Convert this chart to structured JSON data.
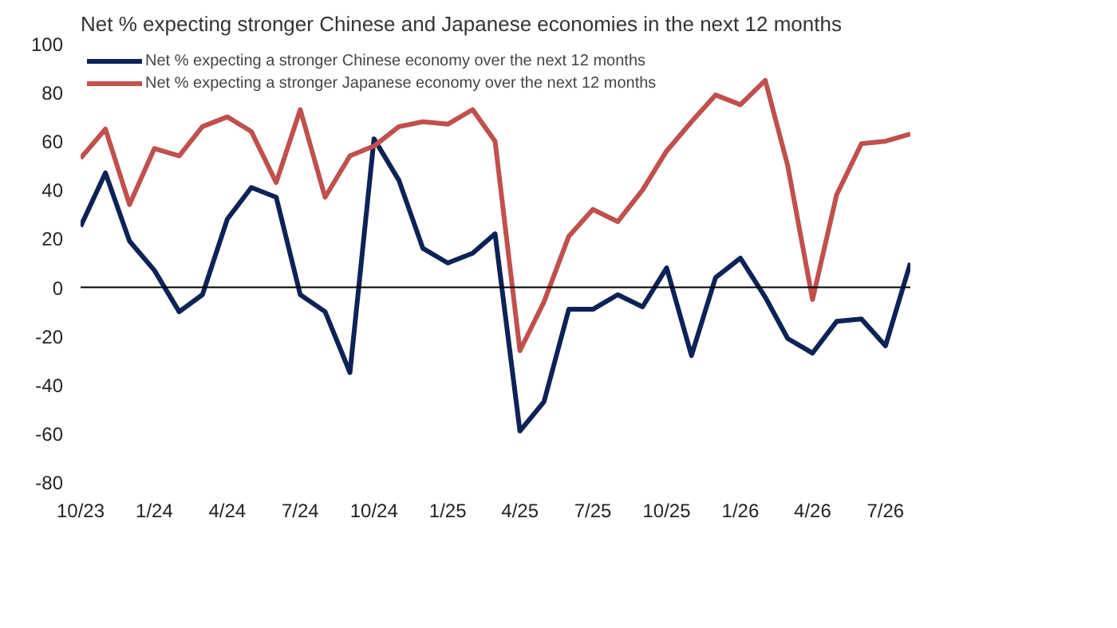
{
  "chart_data": {
    "type": "line",
    "title": "Net % expecting stronger Chinese and Japanese economies in the next 12 months",
    "x": [
      "2023-10",
      "2023-11",
      "2023-12",
      "2024-01",
      "2024-02",
      "2024-03",
      "2024-04",
      "2024-05",
      "2024-06",
      "2024-07",
      "2024-08",
      "2024-09",
      "2024-10",
      "2024-11",
      "2024-12",
      "2025-01",
      "2025-02",
      "2025-03",
      "2025-04",
      "2025-05",
      "2025-06",
      "2025-07",
      "2025-08",
      "2025-09",
      "2025-10",
      "2025-11",
      "2025-12",
      "2026-01",
      "2026-02",
      "2026-03",
      "2026-04",
      "2026-05",
      "2026-06",
      "2026-07",
      "2026-08"
    ],
    "series": [
      {
        "name": "Net % expecting a stronger Chinese economy over the next 12 months",
        "color": "#0d2357",
        "values": [
          25,
          47,
          19,
          7,
          -10,
          -3,
          28,
          41,
          37,
          -3,
          -10,
          -35,
          61,
          44,
          16,
          10,
          14,
          22,
          -59,
          -47,
          -9,
          -9,
          -3,
          -8,
          8,
          -28,
          4,
          12,
          -4,
          -21,
          -27,
          -14,
          -13,
          -24,
          10
        ]
      },
      {
        "name": "Net % expecting a stronger Japanese economy over the next 12 months",
        "color": "#c0504d",
        "values": [
          53,
          65,
          34,
          57,
          54,
          66,
          70,
          64,
          43,
          73,
          37,
          54,
          58,
          66,
          68,
          67,
          73,
          60,
          -26,
          -6,
          21,
          32,
          27,
          40,
          56,
          68,
          79,
          75,
          85,
          50,
          -5,
          38,
          59,
          60,
          63
        ]
      }
    ],
    "xticks": [
      {
        "value": "2023-10",
        "label": "10/23"
      },
      {
        "value": "2024-01",
        "label": "1/24"
      },
      {
        "value": "2024-04",
        "label": "4/24"
      },
      {
        "value": "2024-07",
        "label": "7/24"
      },
      {
        "value": "2024-10",
        "label": "10/24"
      },
      {
        "value": "2025-01",
        "label": "1/25"
      },
      {
        "value": "2025-04",
        "label": "4/25"
      },
      {
        "value": "2025-07",
        "label": "7/25"
      },
      {
        "value": "2025-10",
        "label": "10/25"
      },
      {
        "value": "2026-01",
        "label": "1/26"
      },
      {
        "value": "2026-04",
        "label": "4/26"
      },
      {
        "value": "2026-07",
        "label": "7/26"
      }
    ],
    "xlim": [
      "2023-10",
      "2026-08"
    ],
    "ylim": [
      -80,
      100
    ],
    "yticks": [
      -80,
      -60,
      -40,
      -20,
      0,
      20,
      40,
      60,
      80,
      100
    ],
    "ref_lines": [
      {
        "axis": "y",
        "value": 0,
        "color": "#000000"
      }
    ],
    "grid": false,
    "legend": "top"
  }
}
